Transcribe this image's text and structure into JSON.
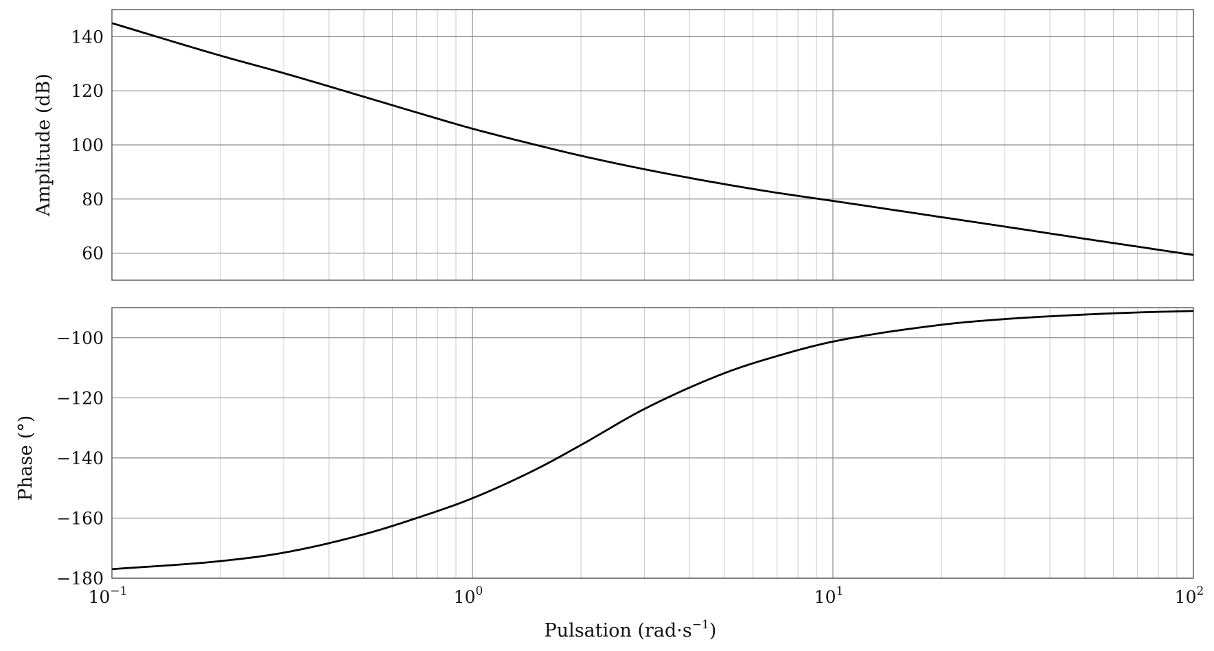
{
  "chart_data": [
    {
      "type": "line",
      "name": "amplitude",
      "xscale": "log",
      "xlim": [
        0.1,
        100
      ],
      "ylim": [
        50,
        150
      ],
      "ylabel": "Amplitude (dB)",
      "yticks": [
        60,
        80,
        100,
        120,
        140
      ],
      "ytick_labels": [
        "60",
        "80",
        "100",
        "120",
        "140"
      ],
      "grid": true,
      "series": [
        {
          "name": "Amplitude",
          "x": [
            0.1,
            0.2,
            0.3,
            0.5,
            0.7,
            1,
            1.5,
            2,
            3,
            5,
            7,
            10,
            20,
            30,
            50,
            70,
            100
          ],
          "y": [
            145,
            133,
            126.5,
            117.8,
            112,
            106,
            100,
            96,
            91,
            85.5,
            82.3,
            79.3,
            73.3,
            69.8,
            65.3,
            62.4,
            59.3
          ]
        }
      ]
    },
    {
      "type": "line",
      "name": "phase",
      "xscale": "log",
      "xlim": [
        0.1,
        100
      ],
      "ylim": [
        -180,
        -90
      ],
      "ylabel": "Phase (°)",
      "xlabel_main": "Pulsation (rad·s",
      "xlabel_sup": "−1",
      "xlabel_tail": ")",
      "yticks": [
        -180,
        -160,
        -140,
        -120,
        -100
      ],
      "ytick_labels": [
        "−180",
        "−160",
        "−140",
        "−120",
        "−100"
      ],
      "xticks": [
        0.1,
        1,
        10,
        100
      ],
      "xtick_bases": [
        "10",
        "10",
        "10",
        "10"
      ],
      "xtick_exps": [
        "−1",
        "0",
        "1",
        "2"
      ],
      "grid": true,
      "series": [
        {
          "name": "Phase",
          "x": [
            0.1,
            0.2,
            0.3,
            0.5,
            0.7,
            1,
            1.5,
            2,
            3,
            5,
            7,
            10,
            20,
            30,
            50,
            70,
            100
          ],
          "y": [
            -177,
            -174.3,
            -171.5,
            -165.4,
            -160,
            -153.4,
            -143.8,
            -135.7,
            -123.7,
            -111.8,
            -106.1,
            -101.3,
            -95.7,
            -93.8,
            -92.3,
            -91.6,
            -91.1
          ]
        }
      ]
    }
  ]
}
